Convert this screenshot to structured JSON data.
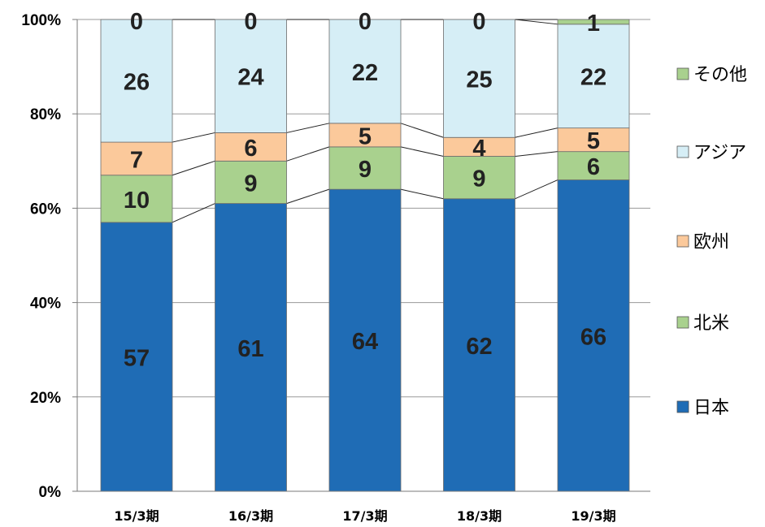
{
  "chart_data": {
    "type": "bar",
    "stacked": true,
    "percent": true,
    "categories": [
      "15/3期",
      "16/3期",
      "17/3期",
      "18/3期",
      "19/3期"
    ],
    "series": [
      {
        "name": "日本",
        "values": [
          57,
          61,
          64,
          62,
          66
        ],
        "color": "#1f6cb5"
      },
      {
        "name": "北米",
        "values": [
          10,
          9,
          9,
          9,
          6
        ],
        "color": "#a9d18e"
      },
      {
        "name": "欧州",
        "values": [
          7,
          6,
          5,
          4,
          5
        ],
        "color": "#fbc99b"
      },
      {
        "name": "アジア",
        "values": [
          26,
          24,
          22,
          25,
          22
        ],
        "color": "#d6eef6"
      },
      {
        "name": "その他",
        "values": [
          0,
          0,
          0,
          0,
          1
        ],
        "color": "#a9d18e"
      }
    ],
    "yticks": [
      "0%",
      "20%",
      "40%",
      "60%",
      "80%",
      "100%"
    ],
    "ylim": [
      0,
      100
    ],
    "grid": true,
    "series_lines": true,
    "legend_position": "right",
    "legend_order": [
      "その他",
      "アジア",
      "欧州",
      "北米",
      "日本"
    ]
  }
}
